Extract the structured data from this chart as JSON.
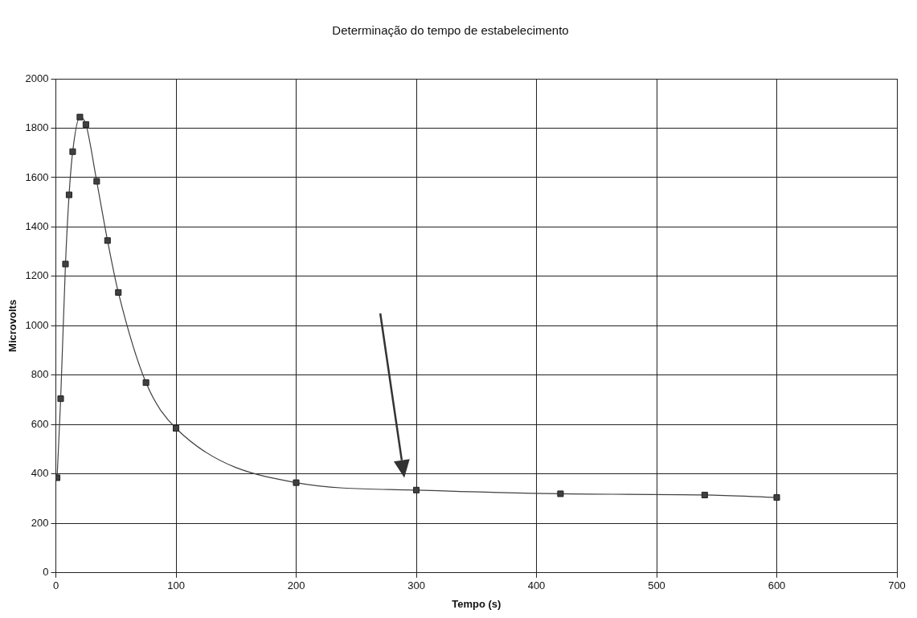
{
  "chart_data": {
    "type": "line",
    "title": "Determinação do tempo de estabelecimento",
    "xlabel": "Tempo (s)",
    "ylabel": "Microvolts",
    "x": [
      1,
      4,
      8,
      11,
      14,
      20,
      25,
      34,
      43,
      52,
      75,
      100,
      200,
      300,
      420,
      540,
      600
    ],
    "series": [
      {
        "color": "#404040",
        "values": [
          385,
          705,
          1250,
          1530,
          1705,
          1845,
          1815,
          1585,
          1345,
          1135,
          770,
          585,
          365,
          335,
          320,
          315,
          305
        ]
      }
    ],
    "xlim": [
      0,
      700
    ],
    "xticks": [
      0,
      100,
      200,
      300,
      400,
      500,
      600,
      700
    ],
    "ylim": [
      0,
      2000
    ],
    "yticks": [
      0,
      200,
      400,
      600,
      800,
      1000,
      1200,
      1400,
      1600,
      1800,
      2000
    ],
    "grid": true,
    "legend": false,
    "marker": "square",
    "line_style": "solid"
  }
}
